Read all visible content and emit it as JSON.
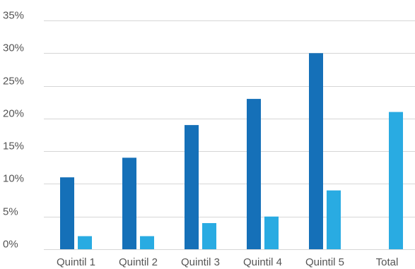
{
  "chart_data": {
    "type": "bar",
    "title": "",
    "xlabel": "",
    "ylabel": "",
    "categories": [
      "Quintil 1",
      "Quintil 2",
      "Quintil 3",
      "Quintil 4",
      "Quintil 5",
      "Total"
    ],
    "series": [
      {
        "values": [
          11,
          14,
          19,
          23,
          30,
          null
        ],
        "color": "#1570b8"
      },
      {
        "values": [
          2,
          2,
          4,
          5,
          9,
          21
        ],
        "color": "#29abe2"
      }
    ],
    "ylim": [
      0,
      35
    ],
    "yticks": [
      0,
      5,
      10,
      15,
      20,
      25,
      30,
      35
    ],
    "ytick_labels": [
      "0%",
      "5%",
      "10%",
      "15%",
      "20%",
      "25%",
      "30%",
      "35%"
    ],
    "grid": true,
    "legend": "none"
  }
}
